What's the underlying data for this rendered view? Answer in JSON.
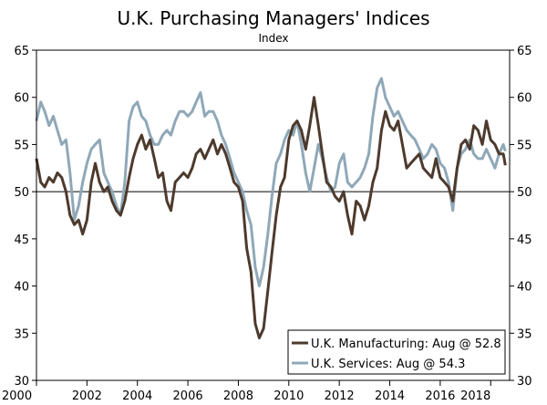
{
  "chart_data": {
    "type": "line",
    "title": "U.K. Purchasing Managers' Indices",
    "subtitle": "Index",
    "xlabel": "",
    "ylabel": "",
    "xlim": [
      2000,
      2018.75
    ],
    "ylim": [
      30,
      65
    ],
    "x_ticks": [
      "2000",
      "2002",
      "2004",
      "2006",
      "2008",
      "2010",
      "2012",
      "2014",
      "2016",
      "2018"
    ],
    "y_ticks": [
      "30",
      "35",
      "40",
      "45",
      "50",
      "55",
      "60",
      "65"
    ],
    "reference_line": 50,
    "legend_position": "bottom-right",
    "colors": {
      "manufacturing": "#4d3a2d",
      "services": "#8fa8b8"
    },
    "series": [
      {
        "name": "U.K. Manufacturing: Aug @ 52.8",
        "x": [
          2000.0,
          2000.17,
          2000.33,
          2000.5,
          2000.67,
          2000.83,
          2001.0,
          2001.17,
          2001.33,
          2001.5,
          2001.67,
          2001.83,
          2002.0,
          2002.17,
          2002.33,
          2002.5,
          2002.67,
          2002.83,
          2003.0,
          2003.17,
          2003.33,
          2003.5,
          2003.67,
          2003.83,
          2004.0,
          2004.17,
          2004.33,
          2004.5,
          2004.67,
          2004.83,
          2005.0,
          2005.17,
          2005.33,
          2005.5,
          2005.67,
          2005.83,
          2006.0,
          2006.17,
          2006.33,
          2006.5,
          2006.67,
          2006.83,
          2007.0,
          2007.17,
          2007.33,
          2007.5,
          2007.67,
          2007.83,
          2008.0,
          2008.17,
          2008.33,
          2008.5,
          2008.67,
          2008.83,
          2009.0,
          2009.17,
          2009.33,
          2009.5,
          2009.67,
          2009.83,
          2010.0,
          2010.17,
          2010.33,
          2010.5,
          2010.67,
          2010.83,
          2011.0,
          2011.17,
          2011.33,
          2011.5,
          2011.67,
          2011.83,
          2012.0,
          2012.17,
          2012.33,
          2012.5,
          2012.67,
          2012.83,
          2013.0,
          2013.17,
          2013.33,
          2013.5,
          2013.67,
          2013.83,
          2014.0,
          2014.17,
          2014.33,
          2014.5,
          2014.67,
          2014.83,
          2015.0,
          2015.17,
          2015.33,
          2015.5,
          2015.67,
          2015.83,
          2016.0,
          2016.17,
          2016.33,
          2016.5,
          2016.67,
          2016.83,
          2017.0,
          2017.17,
          2017.33,
          2017.5,
          2017.67,
          2017.83,
          2018.0,
          2018.17,
          2018.33,
          2018.5,
          2018.58
        ],
        "values": [
          53.5,
          51.0,
          50.5,
          51.5,
          51.0,
          52.0,
          51.5,
          50.0,
          47.5,
          46.5,
          47.0,
          45.5,
          47.0,
          51.0,
          53.0,
          51.0,
          50.0,
          50.5,
          49.0,
          48.0,
          47.5,
          49.0,
          51.5,
          53.5,
          55.0,
          56.0,
          54.5,
          55.5,
          53.5,
          51.5,
          52.0,
          49.0,
          48.0,
          51.0,
          51.5,
          52.0,
          51.5,
          52.5,
          54.0,
          54.5,
          53.5,
          54.5,
          55.5,
          54.0,
          55.0,
          54.0,
          52.5,
          51.0,
          50.5,
          49.0,
          44.0,
          41.5,
          36.0,
          34.5,
          35.5,
          39.5,
          43.5,
          47.5,
          50.5,
          51.5,
          55.5,
          57.0,
          57.5,
          56.5,
          54.5,
          57.0,
          60.0,
          57.0,
          54.0,
          51.0,
          50.5,
          49.5,
          49.0,
          50.0,
          47.5,
          45.5,
          49.0,
          48.5,
          47.0,
          48.5,
          51.0,
          52.5,
          56.5,
          58.5,
          57.0,
          56.5,
          57.5,
          55.0,
          52.5,
          53.0,
          53.5,
          54.0,
          52.5,
          52.0,
          51.5,
          53.5,
          51.5,
          51.0,
          50.5,
          49.0,
          52.5,
          55.0,
          55.5,
          54.5,
          57.0,
          56.5,
          55.0,
          57.5,
          55.5,
          55.0,
          54.0,
          54.0,
          52.8
        ]
      },
      {
        "name": "U.K. Services: Aug @ 54.3",
        "x": [
          2000.0,
          2000.17,
          2000.33,
          2000.5,
          2000.67,
          2000.83,
          2001.0,
          2001.17,
          2001.33,
          2001.5,
          2001.67,
          2001.83,
          2002.0,
          2002.17,
          2002.33,
          2002.5,
          2002.67,
          2002.83,
          2003.0,
          2003.17,
          2003.33,
          2003.5,
          2003.67,
          2003.83,
          2004.0,
          2004.17,
          2004.33,
          2004.5,
          2004.67,
          2004.83,
          2005.0,
          2005.17,
          2005.33,
          2005.5,
          2005.67,
          2005.83,
          2006.0,
          2006.17,
          2006.33,
          2006.5,
          2006.67,
          2006.83,
          2007.0,
          2007.17,
          2007.33,
          2007.5,
          2007.67,
          2007.83,
          2008.0,
          2008.17,
          2008.33,
          2008.5,
          2008.67,
          2008.83,
          2009.0,
          2009.17,
          2009.33,
          2009.5,
          2009.67,
          2009.83,
          2010.0,
          2010.17,
          2010.33,
          2010.5,
          2010.67,
          2010.83,
          2011.0,
          2011.17,
          2011.33,
          2011.5,
          2011.67,
          2011.83,
          2012.0,
          2012.17,
          2012.33,
          2012.5,
          2012.67,
          2012.83,
          2013.0,
          2013.17,
          2013.33,
          2013.5,
          2013.67,
          2013.83,
          2014.0,
          2014.17,
          2014.33,
          2014.5,
          2014.67,
          2014.83,
          2015.0,
          2015.17,
          2015.33,
          2015.5,
          2015.67,
          2015.83,
          2016.0,
          2016.17,
          2016.33,
          2016.5,
          2016.67,
          2016.83,
          2017.0,
          2017.17,
          2017.33,
          2017.5,
          2017.67,
          2017.83,
          2018.0,
          2018.17,
          2018.33,
          2018.5,
          2018.58
        ],
        "values": [
          57.5,
          59.5,
          58.5,
          57.0,
          58.0,
          56.5,
          55.0,
          55.5,
          52.0,
          47.0,
          48.5,
          51.0,
          53.0,
          54.5,
          55.0,
          55.5,
          52.0,
          51.0,
          50.0,
          48.5,
          47.5,
          51.0,
          57.5,
          59.0,
          59.5,
          58.0,
          57.5,
          56.0,
          55.0,
          55.0,
          56.0,
          56.5,
          56.0,
          57.5,
          58.5,
          58.5,
          58.0,
          58.5,
          59.5,
          60.5,
          58.0,
          58.5,
          58.5,
          57.5,
          56.0,
          55.0,
          53.5,
          52.0,
          51.0,
          50.0,
          48.0,
          46.5,
          42.0,
          40.0,
          42.0,
          45.5,
          49.5,
          53.0,
          54.0,
          55.5,
          56.5,
          56.0,
          57.5,
          55.0,
          52.0,
          50.0,
          52.5,
          55.0,
          53.5,
          51.5,
          50.0,
          50.5,
          53.0,
          54.0,
          51.0,
          50.5,
          51.0,
          51.5,
          52.5,
          54.0,
          58.0,
          61.0,
          62.0,
          60.0,
          59.0,
          58.0,
          58.5,
          57.5,
          56.5,
          56.0,
          55.5,
          54.5,
          53.5,
          54.0,
          55.0,
          54.5,
          53.0,
          52.5,
          51.0,
          48.0,
          52.5,
          54.0,
          54.5,
          55.5,
          54.0,
          53.5,
          53.5,
          54.5,
          53.5,
          52.5,
          54.0,
          55.0,
          54.3
        ]
      }
    ]
  }
}
